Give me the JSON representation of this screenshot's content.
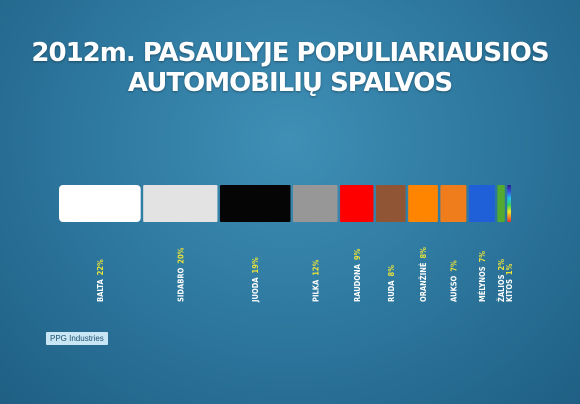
{
  "title": {
    "line1": "2012m. PASAULYJE POPULIARIAUSIOS",
    "line2": "AUTOMOBILIŲ SPALVOS"
  },
  "source": "PPG Industries",
  "chart_data": {
    "type": "bar",
    "orientation": "horizontal-stacked",
    "categories": [
      "BALTA",
      "SIDABRO",
      "JUODA",
      "PILKA",
      "RAUDONA",
      "RUDA",
      "ORANŽINĖ",
      "AUKSO",
      "MĖLYNOS",
      "ŽALIOS",
      "KITOS"
    ],
    "labels": [
      "22%",
      "20%",
      "19%",
      "12%",
      "9%",
      "8%",
      "8%",
      "7%",
      "7%",
      "2%",
      "1%"
    ],
    "colors": [
      "#ffffff",
      "#e3e3e3",
      "#050505",
      "#979797",
      "#ff0000",
      "#8f5534",
      "#ff8400",
      "#f07d1c",
      "#1f60d8",
      "#53aa2e",
      "rainbow"
    ],
    "legend": "none",
    "grid": false
  }
}
